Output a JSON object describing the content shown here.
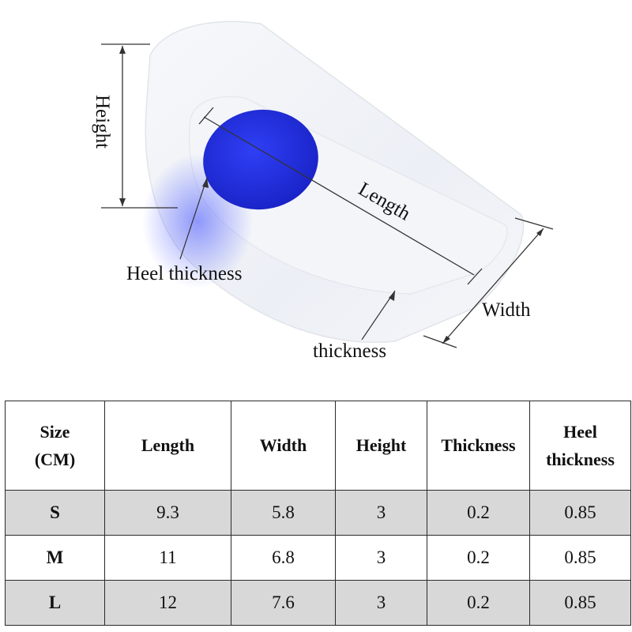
{
  "diagram": {
    "labels": {
      "height": "Height",
      "length": "Length",
      "width": "Width",
      "heel_thickness": "Heel thickness",
      "thickness": "thickness"
    },
    "colors": {
      "pad_blue": "#1f2fe0",
      "silicone": "#f1f3f7",
      "dimension_line": "#333333"
    }
  },
  "table": {
    "headers": {
      "size_line1": "Size",
      "size_line2": "(CM)",
      "length": "Length",
      "width": "Width",
      "height": "Height",
      "thickness": "Thickness",
      "heel_thickness_line1": "Heel",
      "heel_thickness_line2": "thickness"
    },
    "rows": [
      {
        "size": "S",
        "length": "9.3",
        "width": "5.8",
        "height": "3",
        "thickness": "0.2",
        "heel_thickness": "0.85"
      },
      {
        "size": "M",
        "length": "11",
        "width": "6.8",
        "height": "3",
        "thickness": "0.2",
        "heel_thickness": "0.85"
      },
      {
        "size": "L",
        "length": "12",
        "width": "7.6",
        "height": "3",
        "thickness": "0.2",
        "heel_thickness": "0.85"
      }
    ],
    "colors": {
      "shaded_row": "#d8d8d8",
      "border": "#2a2a2a"
    }
  }
}
